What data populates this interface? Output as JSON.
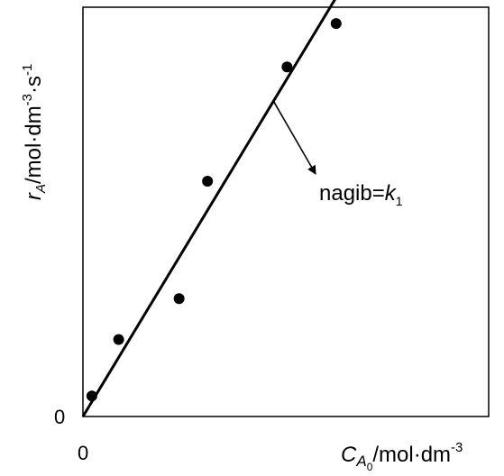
{
  "chart_data": {
    "type": "scatter",
    "title": "",
    "xlabel": {
      "main": "C",
      "sub": "A",
      "subsub": "0",
      "rest": "/mol·dm",
      "sup": "-3"
    },
    "ylabel": {
      "main": "r",
      "sub": "A",
      "rest": "/mol·dm",
      "sup1": "-3",
      "mid": "·s",
      "sup2": "-1"
    },
    "origin_label": "0",
    "x_tick_label": "0",
    "y_tick_label": "0",
    "xlim": [
      0,
      10
    ],
    "ylim": [
      0,
      10
    ],
    "points": [
      {
        "x": 0.22,
        "y": 0.5
      },
      {
        "x": 0.88,
        "y": 1.88
      },
      {
        "x": 2.37,
        "y": 2.88
      },
      {
        "x": 3.07,
        "y": 5.75
      },
      {
        "x": 5.03,
        "y": 8.54
      },
      {
        "x": 6.24,
        "y": 9.6
      }
    ],
    "fit_line": {
      "x": [
        0,
        6.4
      ],
      "y": [
        0,
        10.5
      ]
    },
    "annotation": {
      "text_main": "nagib=",
      "text_k": "k",
      "text_sub": "1",
      "points_to_x": 4.7,
      "points_to_y": 7.7
    },
    "grid": false,
    "legend": "none"
  }
}
